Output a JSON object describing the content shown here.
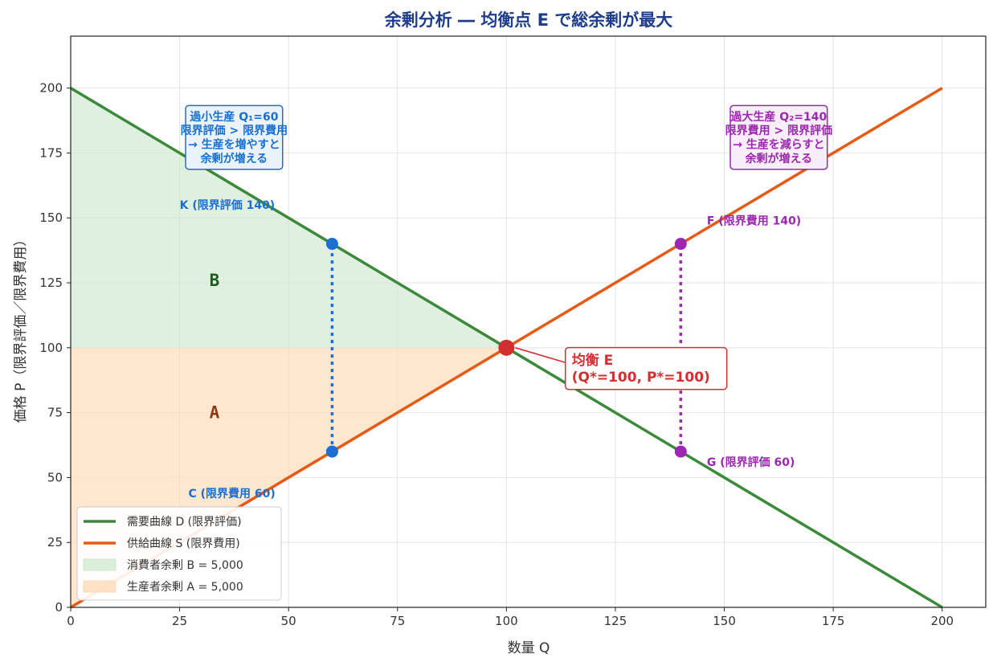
{
  "chart_data": {
    "type": "line",
    "title": "余剰分析 ― 均衡点 E で総余剰が最大",
    "xlabel": "数量 Q",
    "ylabel": "価格 P（限界評価／限界費用）",
    "xlim": [
      0,
      210
    ],
    "ylim": [
      0,
      220
    ],
    "xticks": [
      0,
      25,
      50,
      75,
      100,
      125,
      150,
      175,
      200
    ],
    "yticks": [
      0,
      25,
      50,
      75,
      100,
      125,
      150,
      175,
      200
    ],
    "grid": true,
    "legend_position": "lower-left",
    "series": [
      {
        "name": "需要曲線 D (限界評価)",
        "x": [
          0,
          200
        ],
        "y": [
          200,
          0
        ],
        "color": "#3a8a3a"
      },
      {
        "name": "供給曲線 S (限界費用)",
        "x": [
          0,
          200
        ],
        "y": [
          0,
          200
        ],
        "color": "#e65a14"
      }
    ],
    "areas": [
      {
        "name": "消費者余剰 B = 5,000",
        "polygon": [
          [
            0,
            200
          ],
          [
            100,
            100
          ],
          [
            0,
            100
          ]
        ],
        "color": "#cfe8cf",
        "label": "B",
        "label_at": [
          33,
          126
        ],
        "label_color": "#1b5e20"
      },
      {
        "name": "生産者余剰 A = 5,000",
        "polygon": [
          [
            0,
            0
          ],
          [
            100,
            100
          ],
          [
            0,
            100
          ]
        ],
        "color": "#fdd9b5",
        "label": "A",
        "label_at": [
          33,
          75
        ],
        "label_color": "#8a3a10"
      }
    ],
    "vlines": [
      {
        "x": 60,
        "y": [
          60,
          140
        ],
        "color": "#1a6fd1"
      },
      {
        "x": 140,
        "y": [
          60,
          140
        ],
        "color": "#9c27b0"
      }
    ],
    "points": [
      {
        "x": 60,
        "y": 140,
        "color": "#1a6fd1",
        "label": "K (限界評価 140)",
        "label_at": [
          25,
          155
        ]
      },
      {
        "x": 60,
        "y": 60,
        "color": "#1a6fd1",
        "label": "C (限界費用 60)",
        "label_at": [
          27,
          44
        ]
      },
      {
        "x": 140,
        "y": 140,
        "color": "#9c27b0",
        "label": "F (限界費用 140)",
        "label_at": [
          146,
          149
        ]
      },
      {
        "x": 140,
        "y": 60,
        "color": "#9c27b0",
        "label": "G (限界評価 60)",
        "label_at": [
          146,
          56
        ]
      },
      {
        "x": 100,
        "y": 100,
        "color": "#d32f2f",
        "big": true
      }
    ],
    "annotations": [
      {
        "lines": [
          "均衡 E",
          "(Q*=100, P*=100)"
        ],
        "at": [
          115,
          92
        ],
        "arrow_to": [
          100,
          100
        ],
        "color": "#d32f2f",
        "bg": "#ffffff",
        "align": "left",
        "size": 17
      },
      {
        "lines": [
          "過小生産 Q₁=60",
          "限界評価 > 限界費用",
          "→ 生産を増やすと",
          "余剰が増える"
        ],
        "at": [
          37.5,
          181
        ],
        "color": "#1a6fd1",
        "bg": "#eaf3fc",
        "align": "center",
        "size": 14
      },
      {
        "lines": [
          "過大生産 Q₂=140",
          "限界費用 > 限界評価",
          "→ 生産を減らすと",
          "余剰が増える"
        ],
        "at": [
          162.5,
          181
        ],
        "color": "#9c27b0",
        "bg": "#f7eefa",
        "align": "center",
        "size": 14
      }
    ],
    "legend": [
      {
        "kind": "line",
        "label": "需要曲線 D (限界評価)",
        "color": "#3a8a3a"
      },
      {
        "kind": "line",
        "label": "供給曲線 S (限界費用)",
        "color": "#e65a14"
      },
      {
        "kind": "patch",
        "label": "消費者余剰 B = 5,000",
        "color": "#cfe8cf"
      },
      {
        "kind": "patch",
        "label": "生産者余剰 A = 5,000",
        "color": "#fdd9b5"
      }
    ]
  }
}
